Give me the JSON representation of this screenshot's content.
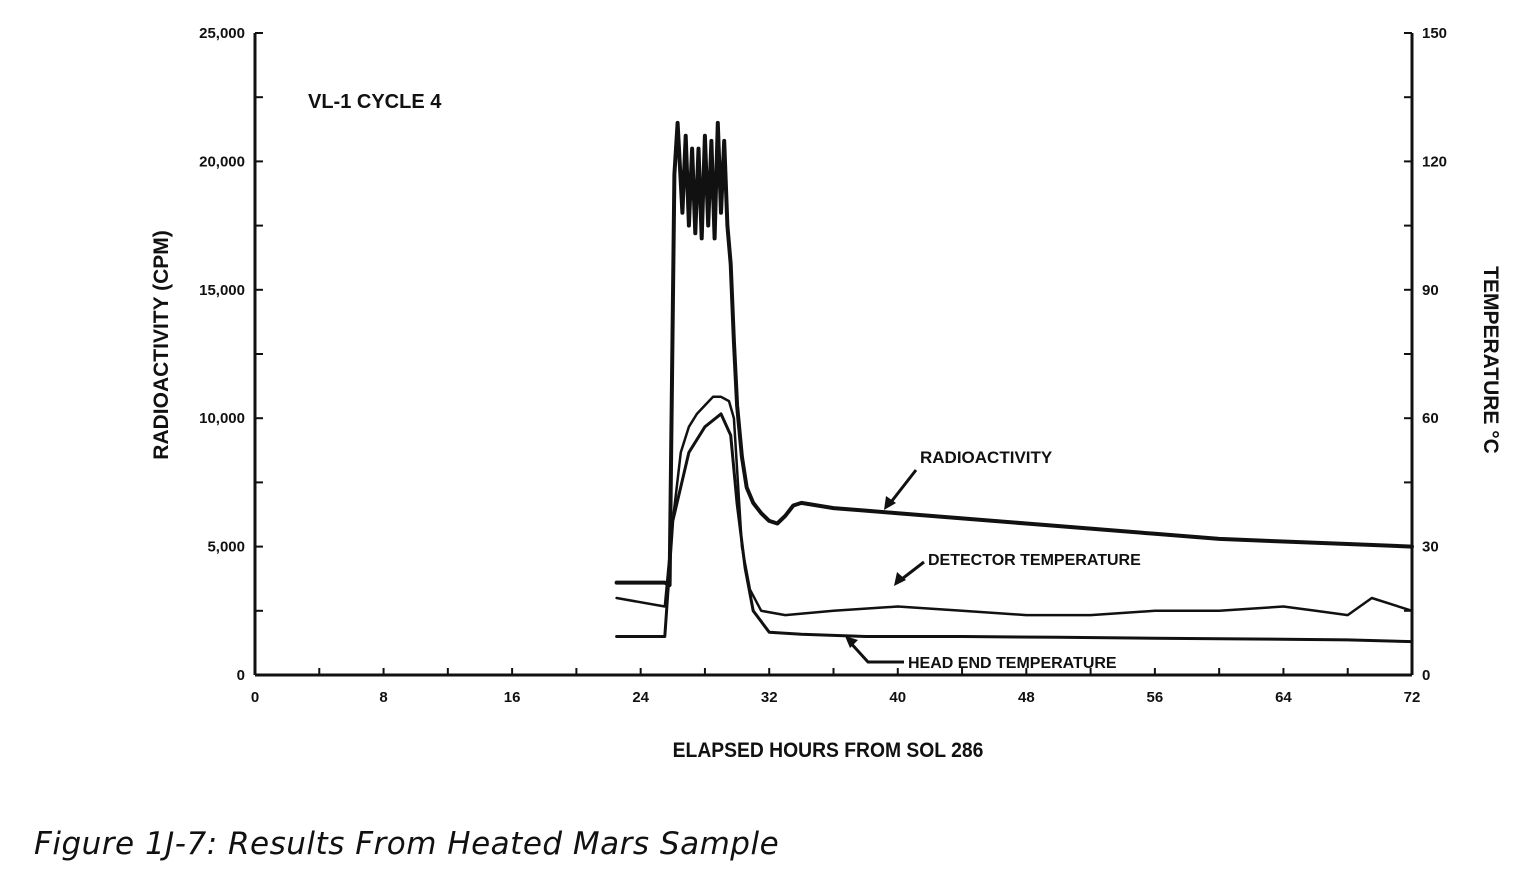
{
  "caption": "Figure 1J-7:  Results From Heated Mars Sample",
  "chart_data": {
    "type": "line",
    "title": "VL-1 CYCLE 4",
    "xlabel": "ELAPSED HOURS FROM SOL 286",
    "ylabel": "RADIOACTIVITY (CPM)",
    "y2label": "TEMPERATURE °C",
    "xlim": [
      0,
      72
    ],
    "ylim": [
      0,
      25000
    ],
    "y2lim": [
      0,
      150
    ],
    "x_ticks": [
      0,
      8,
      16,
      24,
      32,
      40,
      48,
      56,
      64,
      72
    ],
    "x_tick_labels": [
      "0",
      "8",
      "16",
      "24",
      "32",
      "40",
      "48",
      "56",
      "64",
      "72"
    ],
    "y_ticks": [
      0,
      5000,
      10000,
      15000,
      20000,
      25000
    ],
    "y_tick_labels": [
      "0",
      "5,000",
      "10,000",
      "15,000",
      "20,000",
      "25,000"
    ],
    "y2_ticks": [
      0,
      30,
      60,
      90,
      120,
      150
    ],
    "y2_tick_labels": [
      "0",
      "30",
      "60",
      "90",
      "120",
      "150"
    ],
    "grid": false,
    "series": [
      {
        "name": "RADIOACTIVITY",
        "axis": "left",
        "x": [
          22.5,
          25.5,
          25.8,
          26.1,
          26.3,
          26.6,
          26.8,
          27.0,
          27.2,
          27.4,
          27.6,
          27.8,
          28.0,
          28.2,
          28.4,
          28.6,
          28.8,
          29.0,
          29.2,
          29.4,
          29.6,
          29.8,
          30.0,
          30.3,
          30.6,
          31.0,
          31.5,
          32.0,
          32.5,
          33.0,
          33.5,
          34.0,
          35.0,
          36.0,
          38.0,
          40.0,
          44.0,
          48.0,
          52.0,
          56.0,
          60.0,
          64.0,
          68.0,
          72.0
        ],
        "y": [
          3600,
          3600,
          3500,
          19500,
          21500,
          18000,
          21000,
          17500,
          20500,
          17200,
          20500,
          17000,
          21000,
          17500,
          20800,
          17000,
          21500,
          18000,
          20800,
          17500,
          16000,
          13000,
          10500,
          8500,
          7300,
          6700,
          6300,
          6000,
          5900,
          6200,
          6600,
          6700,
          6600,
          6500,
          6400,
          6300,
          6100,
          5900,
          5700,
          5500,
          5300,
          5200,
          5100,
          5000
        ]
      },
      {
        "name": "DETECTOR TEMPERATURE",
        "axis": "right",
        "x": [
          22.5,
          25.5,
          26.0,
          26.5,
          27.0,
          27.5,
          28.0,
          28.5,
          29.0,
          29.5,
          29.8,
          30.3,
          30.8,
          31.5,
          33.0,
          36.0,
          40.0,
          44.0,
          48.0,
          52.0,
          56.0,
          60.0,
          64.0,
          66.0,
          68.0,
          69.5,
          72.0
        ],
        "y": [
          18,
          16,
          36,
          52,
          58,
          61,
          63,
          65,
          65,
          64,
          60,
          30,
          20,
          15,
          14,
          15,
          16,
          15,
          14,
          14,
          15,
          15,
          16,
          15,
          14,
          18,
          15
        ]
      },
      {
        "name": "HEAD END TEMPERATURE",
        "axis": "right",
        "x": [
          22.5,
          25.5,
          26.0,
          27.0,
          28.0,
          29.0,
          29.6,
          30.0,
          30.5,
          31.0,
          32.0,
          34.0,
          38.0,
          44.0,
          50.0,
          56.0,
          62.0,
          68.0,
          72.0
        ],
        "y": [
          9,
          9,
          36,
          52,
          58,
          61,
          56,
          40,
          25,
          15,
          10,
          9.5,
          9,
          9,
          8.8,
          8.6,
          8.4,
          8.2,
          7.8
        ]
      }
    ],
    "annotations": [
      {
        "text": "VL-1 CYCLE 4"
      },
      {
        "text": "RADIOACTIVITY"
      },
      {
        "text": "DETECTOR TEMPERATURE"
      },
      {
        "text": "HEAD END TEMPERATURE"
      }
    ]
  }
}
